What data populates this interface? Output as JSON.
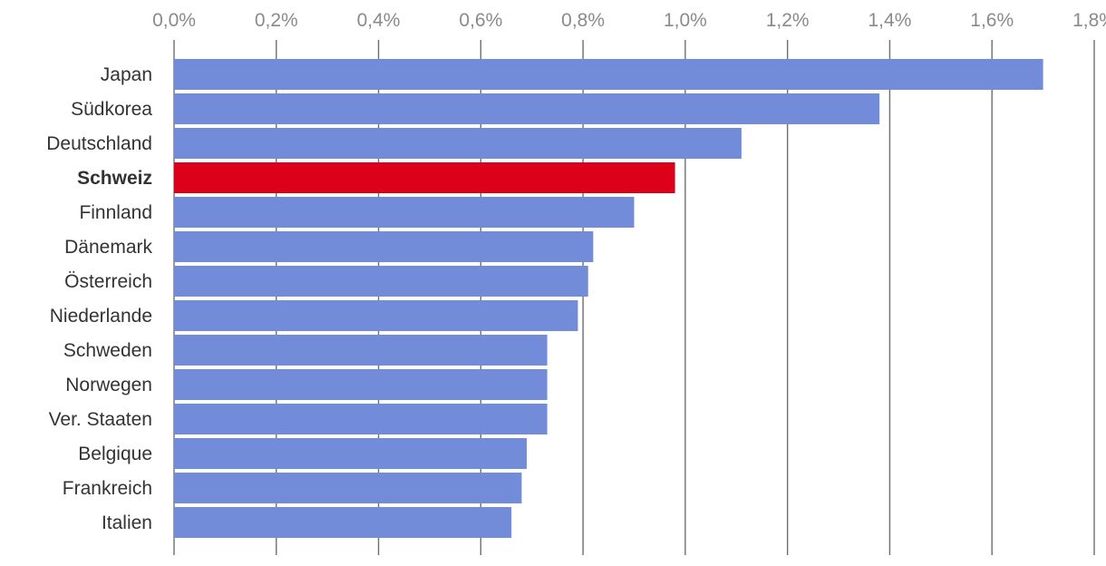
{
  "chart_data": {
    "type": "bar",
    "orientation": "horizontal",
    "title": "",
    "xlabel": "",
    "ylabel": "",
    "xlim": [
      0,
      1.8
    ],
    "grid": true,
    "x_ticks": [
      0.0,
      0.2,
      0.4,
      0.6,
      0.8,
      1.0,
      1.2,
      1.4,
      1.6,
      1.8
    ],
    "x_tick_labels": [
      "0,0%",
      "0,2%",
      "0,4%",
      "0,6%",
      "0,8%",
      "1,0%",
      "1,2%",
      "1,4%",
      "1,6%",
      "1,8%"
    ],
    "categories": [
      "Japan",
      "Südkorea",
      "Deutschland",
      "Schweiz",
      "Finnland",
      "Dänemark",
      "Österreich",
      "Niederlande",
      "Schweden",
      "Norwegen",
      "Ver. Staaten",
      "Belgique",
      "Frankreich",
      "Italien"
    ],
    "values": [
      1.7,
      1.38,
      1.11,
      0.98,
      0.9,
      0.82,
      0.81,
      0.79,
      0.73,
      0.73,
      0.73,
      0.69,
      0.68,
      0.66
    ],
    "highlight_category": "Schweiz",
    "colors": {
      "default_bar": "#728cda",
      "highlight_bar": "#dc001a"
    }
  }
}
